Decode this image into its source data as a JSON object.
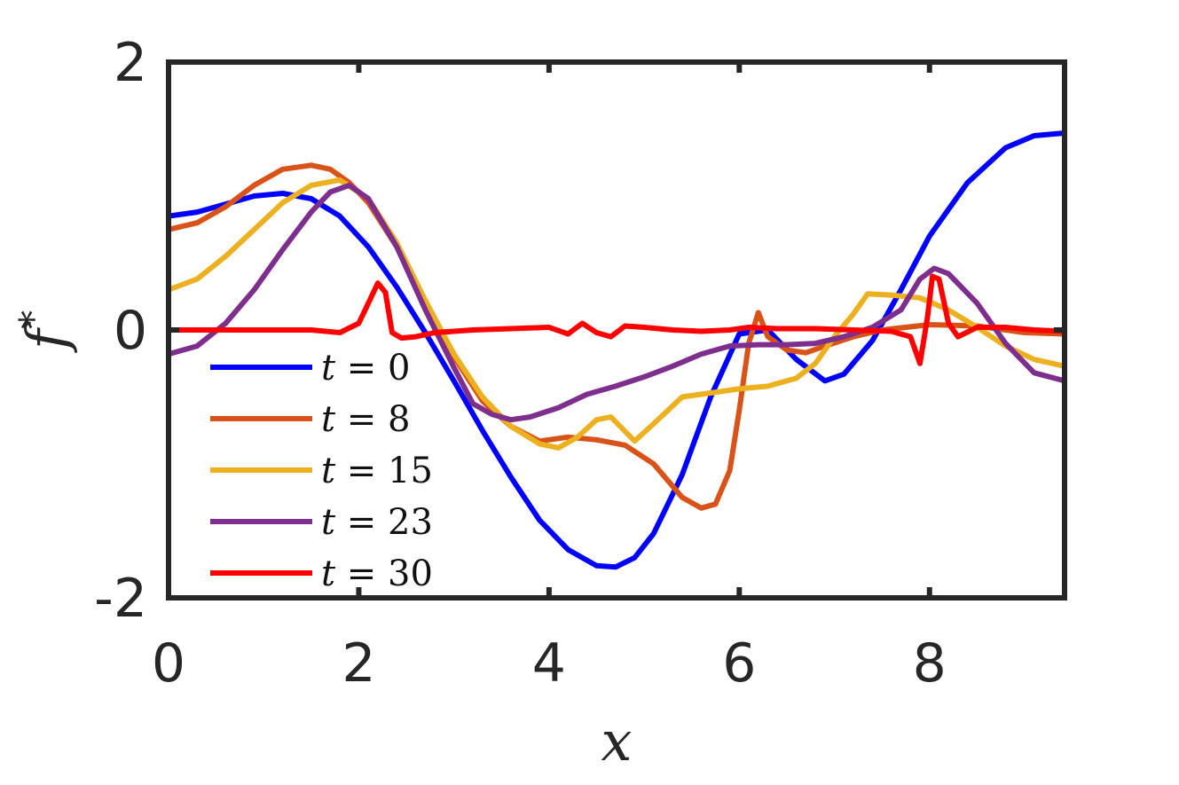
{
  "chart_data": {
    "type": "line",
    "xlabel": "x",
    "ylabel": "f*",
    "xlim": [
      0,
      9.42
    ],
    "ylim": [
      -2,
      2
    ],
    "xticks": [
      0,
      2,
      4,
      6,
      8
    ],
    "xtick_labels": [
      "0",
      "2",
      "4",
      "6",
      "8"
    ],
    "yticks": [
      -2,
      0,
      2
    ],
    "ytick_labels": [
      "-2",
      "0",
      "2"
    ],
    "grid": false,
    "legend_position": "bottom-left",
    "series": [
      {
        "name": "t = 0",
        "color": "#0000FF",
        "x": [
          0,
          0.3,
          0.6,
          0.9,
          1.2,
          1.5,
          1.8,
          2.1,
          2.4,
          2.7,
          3.0,
          3.3,
          3.6,
          3.9,
          4.2,
          4.5,
          4.7,
          4.9,
          5.1,
          5.4,
          5.7,
          6.0,
          6.3,
          6.6,
          6.9,
          7.1,
          7.4,
          7.7,
          8.0,
          8.4,
          8.8,
          9.1,
          9.42
        ],
        "y": [
          0.85,
          0.88,
          0.94,
          1.0,
          1.02,
          0.98,
          0.85,
          0.62,
          0.32,
          -0.02,
          -0.38,
          -0.75,
          -1.1,
          -1.42,
          -1.64,
          -1.76,
          -1.77,
          -1.7,
          -1.52,
          -1.08,
          -0.5,
          -0.03,
          0.0,
          -0.22,
          -0.38,
          -0.33,
          -0.08,
          0.3,
          0.7,
          1.1,
          1.36,
          1.45,
          1.47
        ]
      },
      {
        "name": "t = 8",
        "color": "#D95319",
        "x": [
          0,
          0.3,
          0.6,
          0.9,
          1.2,
          1.5,
          1.7,
          1.9,
          2.1,
          2.4,
          2.7,
          3.0,
          3.3,
          3.6,
          3.9,
          4.2,
          4.5,
          4.8,
          5.1,
          5.4,
          5.6,
          5.75,
          5.9,
          6.0,
          6.1,
          6.2,
          6.3,
          6.5,
          6.7,
          6.9,
          7.2,
          7.5,
          8.0,
          8.5,
          9.0,
          9.42
        ],
        "y": [
          0.75,
          0.8,
          0.92,
          1.08,
          1.2,
          1.23,
          1.2,
          1.1,
          0.95,
          0.62,
          0.2,
          -0.2,
          -0.53,
          -0.72,
          -0.83,
          -0.8,
          -0.82,
          -0.86,
          -1.0,
          -1.25,
          -1.33,
          -1.3,
          -1.05,
          -0.6,
          -0.1,
          0.13,
          -0.05,
          -0.15,
          -0.17,
          -0.12,
          -0.05,
          0.0,
          0.04,
          0.03,
          -0.02,
          -0.03
        ]
      },
      {
        "name": "t = 15",
        "color": "#EDB120",
        "x": [
          0,
          0.3,
          0.6,
          0.9,
          1.2,
          1.5,
          1.8,
          2.1,
          2.4,
          2.7,
          3.0,
          3.3,
          3.6,
          3.9,
          4.1,
          4.3,
          4.5,
          4.65,
          4.9,
          5.1,
          5.4,
          5.7,
          6.0,
          6.3,
          6.6,
          6.8,
          7.0,
          7.2,
          7.35,
          7.6,
          7.9,
          8.2,
          8.5,
          8.8,
          9.1,
          9.42
        ],
        "y": [
          0.3,
          0.38,
          0.55,
          0.75,
          0.95,
          1.08,
          1.12,
          0.98,
          0.65,
          0.22,
          -0.18,
          -0.5,
          -0.72,
          -0.85,
          -0.88,
          -0.8,
          -0.67,
          -0.65,
          -0.83,
          -0.7,
          -0.5,
          -0.47,
          -0.44,
          -0.42,
          -0.36,
          -0.25,
          -0.05,
          0.12,
          0.27,
          0.26,
          0.24,
          0.15,
          0.02,
          -0.12,
          -0.22,
          -0.27
        ]
      },
      {
        "name": "t = 23",
        "color": "#7E2F8E",
        "x": [
          0,
          0.3,
          0.6,
          0.9,
          1.2,
          1.5,
          1.7,
          1.9,
          2.1,
          2.4,
          2.7,
          3.0,
          3.2,
          3.4,
          3.6,
          3.8,
          4.1,
          4.4,
          4.7,
          5.0,
          5.3,
          5.6,
          5.9,
          6.2,
          6.5,
          6.8,
          7.1,
          7.4,
          7.7,
          7.9,
          8.05,
          8.2,
          8.5,
          8.8,
          9.1,
          9.42
        ],
        "y": [
          -0.18,
          -0.12,
          0.05,
          0.3,
          0.6,
          0.88,
          1.03,
          1.08,
          0.98,
          0.62,
          0.15,
          -0.28,
          -0.55,
          -0.63,
          -0.67,
          -0.65,
          -0.58,
          -0.48,
          -0.42,
          -0.35,
          -0.27,
          -0.18,
          -0.12,
          -0.11,
          -0.11,
          -0.1,
          -0.05,
          0.02,
          0.15,
          0.38,
          0.46,
          0.42,
          0.2,
          -0.1,
          -0.32,
          -0.38
        ]
      },
      {
        "name": "t = 30",
        "color": "#FF0000",
        "x": [
          0,
          0.5,
          1.0,
          1.5,
          1.8,
          2.0,
          2.1,
          2.2,
          2.28,
          2.35,
          2.45,
          2.6,
          2.8,
          3.2,
          3.6,
          4.0,
          4.2,
          4.35,
          4.5,
          4.65,
          4.8,
          5.0,
          5.3,
          5.6,
          5.9,
          6.1,
          6.4,
          6.8,
          7.2,
          7.6,
          7.8,
          7.9,
          7.98,
          8.03,
          8.1,
          8.2,
          8.3,
          8.5,
          8.8,
          9.1,
          9.42
        ],
        "y": [
          0.0,
          0.0,
          0.0,
          0.0,
          -0.02,
          0.05,
          0.2,
          0.35,
          0.28,
          -0.02,
          -0.06,
          -0.05,
          -0.02,
          0.0,
          0.01,
          0.02,
          -0.03,
          0.05,
          -0.02,
          -0.05,
          0.03,
          0.02,
          0.0,
          -0.01,
          0.0,
          0.02,
          0.01,
          0.01,
          0.0,
          -0.01,
          -0.05,
          -0.25,
          0.1,
          0.4,
          0.38,
          0.05,
          -0.05,
          0.02,
          0.02,
          0.0,
          -0.01
        ]
      }
    ]
  }
}
